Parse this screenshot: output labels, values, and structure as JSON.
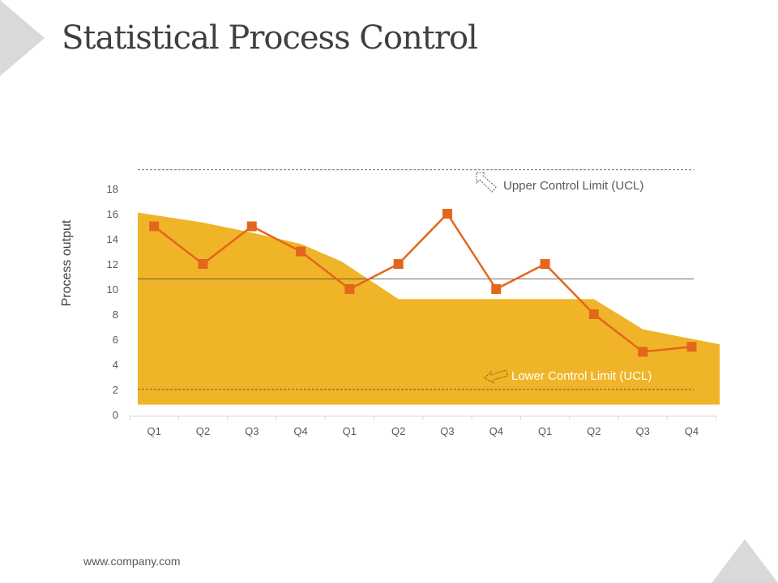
{
  "title": "Statistical Process Control",
  "footer": "www.company.com",
  "colors": {
    "area": "#f0b428",
    "line": "#e3661b",
    "text": "#595959"
  },
  "chart_data": {
    "type": "line",
    "ylabel": "Process output",
    "ylim": [
      0,
      18
    ],
    "yticks": [
      0,
      2,
      4,
      6,
      8,
      10,
      12,
      14,
      16,
      18
    ],
    "categories": [
      "Q1",
      "Q2",
      "Q3",
      "Q4",
      "Q1",
      "Q2",
      "Q3",
      "Q4",
      "Q1",
      "Q2",
      "Q3",
      "Q4"
    ],
    "series": [
      {
        "type": "line",
        "values": [
          15,
          12,
          15,
          13,
          10,
          12,
          16,
          10,
          12,
          8,
          5,
          5.4
        ]
      },
      {
        "type": "area",
        "values": [
          16.1,
          15.3,
          14.5,
          13.6,
          12.2,
          9.2,
          9.2,
          9.2,
          9.2,
          9.2,
          6.8,
          6.0
        ],
        "baseline": 0.8
      }
    ],
    "reference_lines": [
      {
        "label": "Upper Control Limit (UCL)",
        "value": 19.5,
        "style": "dashed"
      },
      {
        "label": "",
        "value": 10.8,
        "style": "solid"
      },
      {
        "label": "Lower Control Limit (UCL)",
        "value": 2,
        "style": "dashed"
      }
    ]
  }
}
